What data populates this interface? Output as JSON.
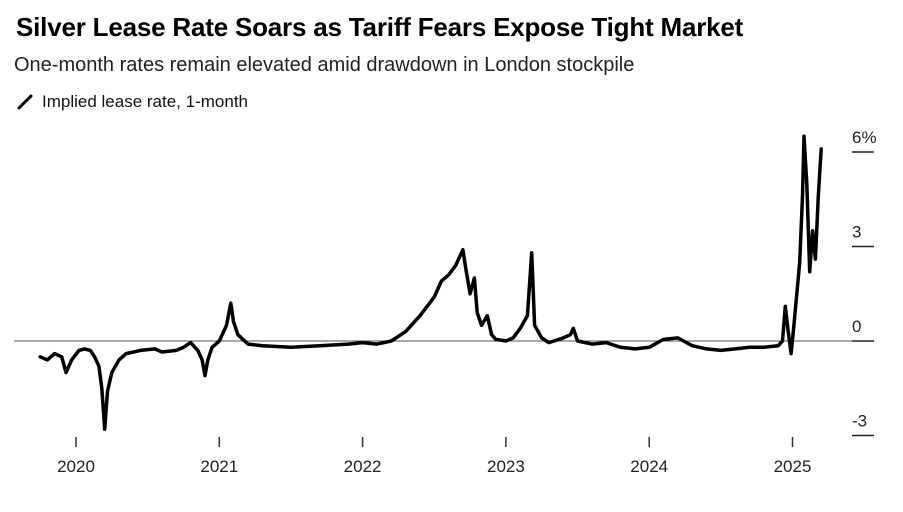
{
  "title": "Silver Lease Rate Soars as Tariff Fears Expose Tight Market",
  "subtitle": "One-month rates remain elevated amid drawdown in London stockpile",
  "chart_data": {
    "type": "line",
    "legend": "top-left",
    "grid": false,
    "xlim": [
      2019.75,
      2025.35
    ],
    "ylim": [
      -4.5,
      7.5
    ],
    "x_ticks": [
      {
        "value": 2020,
        "label": "2020"
      },
      {
        "value": 2021,
        "label": "2021"
      },
      {
        "value": 2022,
        "label": "2022"
      },
      {
        "value": 2023,
        "label": "2023"
      },
      {
        "value": 2024,
        "label": "2024"
      },
      {
        "value": 2025,
        "label": "2025"
      }
    ],
    "y_ticks": [
      {
        "value": 6,
        "label": "6%"
      },
      {
        "value": 3,
        "label": "3"
      },
      {
        "value": 0,
        "label": "0"
      },
      {
        "value": -3,
        "label": "-3"
      }
    ],
    "zero_line": 0,
    "series": [
      {
        "name": "Implied lease rate, 1-month",
        "color": "#000000",
        "points": [
          [
            2019.75,
            -0.5
          ],
          [
            2019.8,
            -0.6
          ],
          [
            2019.85,
            -0.4
          ],
          [
            2019.9,
            -0.5
          ],
          [
            2019.93,
            -1.0
          ],
          [
            2019.97,
            -0.6
          ],
          [
            2020.02,
            -0.3
          ],
          [
            2020.06,
            -0.25
          ],
          [
            2020.1,
            -0.3
          ],
          [
            2020.13,
            -0.5
          ],
          [
            2020.16,
            -0.8
          ],
          [
            2020.18,
            -1.5
          ],
          [
            2020.2,
            -2.8
          ],
          [
            2020.22,
            -1.6
          ],
          [
            2020.25,
            -1.0
          ],
          [
            2020.3,
            -0.6
          ],
          [
            2020.35,
            -0.4
          ],
          [
            2020.45,
            -0.3
          ],
          [
            2020.55,
            -0.25
          ],
          [
            2020.6,
            -0.35
          ],
          [
            2020.7,
            -0.3
          ],
          [
            2020.75,
            -0.2
          ],
          [
            2020.8,
            -0.05
          ],
          [
            2020.85,
            -0.3
          ],
          [
            2020.88,
            -0.6
          ],
          [
            2020.9,
            -1.1
          ],
          [
            2020.92,
            -0.6
          ],
          [
            2020.95,
            -0.2
          ],
          [
            2021.0,
            0.0
          ],
          [
            2021.05,
            0.5
          ],
          [
            2021.08,
            1.2
          ],
          [
            2021.1,
            0.6
          ],
          [
            2021.13,
            0.2
          ],
          [
            2021.2,
            -0.1
          ],
          [
            2021.3,
            -0.15
          ],
          [
            2021.5,
            -0.2
          ],
          [
            2021.7,
            -0.15
          ],
          [
            2021.9,
            -0.1
          ],
          [
            2022.0,
            -0.05
          ],
          [
            2022.1,
            -0.1
          ],
          [
            2022.2,
            0.0
          ],
          [
            2022.3,
            0.3
          ],
          [
            2022.4,
            0.8
          ],
          [
            2022.5,
            1.4
          ],
          [
            2022.55,
            1.9
          ],
          [
            2022.6,
            2.1
          ],
          [
            2022.65,
            2.4
          ],
          [
            2022.7,
            2.9
          ],
          [
            2022.72,
            2.3
          ],
          [
            2022.75,
            1.5
          ],
          [
            2022.78,
            2.0
          ],
          [
            2022.8,
            0.9
          ],
          [
            2022.83,
            0.5
          ],
          [
            2022.87,
            0.8
          ],
          [
            2022.9,
            0.2
          ],
          [
            2022.93,
            0.05
          ],
          [
            2023.0,
            0.0
          ],
          [
            2023.05,
            0.1
          ],
          [
            2023.1,
            0.4
          ],
          [
            2023.15,
            0.8
          ],
          [
            2023.18,
            2.8
          ],
          [
            2023.2,
            0.5
          ],
          [
            2023.25,
            0.1
          ],
          [
            2023.3,
            -0.05
          ],
          [
            2023.4,
            0.1
          ],
          [
            2023.45,
            0.2
          ],
          [
            2023.47,
            0.4
          ],
          [
            2023.5,
            0.0
          ],
          [
            2023.6,
            -0.1
          ],
          [
            2023.7,
            -0.05
          ],
          [
            2023.8,
            -0.2
          ],
          [
            2023.9,
            -0.25
          ],
          [
            2024.0,
            -0.2
          ],
          [
            2024.1,
            0.05
          ],
          [
            2024.2,
            0.1
          ],
          [
            2024.3,
            -0.15
          ],
          [
            2024.4,
            -0.25
          ],
          [
            2024.5,
            -0.3
          ],
          [
            2024.6,
            -0.25
          ],
          [
            2024.7,
            -0.2
          ],
          [
            2024.8,
            -0.2
          ],
          [
            2024.9,
            -0.15
          ],
          [
            2024.93,
            0.0
          ],
          [
            2024.95,
            1.1
          ],
          [
            2024.97,
            0.3
          ],
          [
            2024.99,
            -0.4
          ],
          [
            2025.01,
            0.5
          ],
          [
            2025.03,
            1.5
          ],
          [
            2025.05,
            2.5
          ],
          [
            2025.07,
            4.6
          ],
          [
            2025.08,
            6.5
          ],
          [
            2025.1,
            5.0
          ],
          [
            2025.12,
            2.2
          ],
          [
            2025.14,
            3.5
          ],
          [
            2025.16,
            2.6
          ],
          [
            2025.18,
            4.6
          ],
          [
            2025.2,
            6.1
          ]
        ]
      }
    ]
  }
}
